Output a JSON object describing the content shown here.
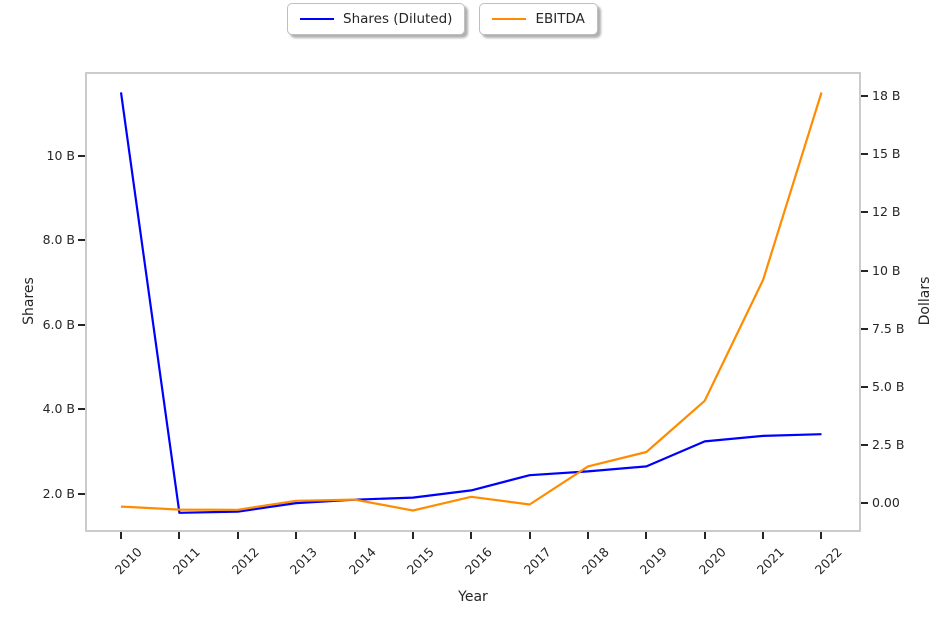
{
  "legend": {
    "items": [
      {
        "name": "shares-diluted",
        "label": "Shares (Diluted)",
        "color": "#0000ff"
      },
      {
        "name": "ebitda",
        "label": "EBITDA",
        "color": "#ff8c00"
      }
    ]
  },
  "chart_data": {
    "type": "line",
    "x": [
      2010,
      2011,
      2012,
      2013,
      2014,
      2015,
      2016,
      2017,
      2018,
      2019,
      2020,
      2021,
      2022
    ],
    "series": [
      {
        "name": "Shares (Diluted)",
        "axis": "left",
        "color": "#0000ff",
        "values": [
          11.5,
          1.55,
          1.58,
          1.78,
          1.86,
          1.91,
          2.08,
          2.44,
          2.53,
          2.65,
          3.24,
          3.37,
          3.41
        ]
      },
      {
        "name": "EBITDA",
        "axis": "right",
        "color": "#ff8c00",
        "values": [
          -0.15,
          -0.28,
          -0.29,
          0.1,
          0.15,
          -0.32,
          0.27,
          -0.06,
          1.58,
          2.2,
          4.4,
          9.6,
          17.66
        ]
      }
    ],
    "title": "",
    "xlabel": "Year",
    "xlim": [
      2009.4,
      2022.66
    ],
    "x_ticks": {
      "rotation": 45,
      "labels": [
        "2010",
        "2011",
        "2012",
        "2013",
        "2014",
        "2015",
        "2016",
        "2017",
        "2018",
        "2019",
        "2020",
        "2021",
        "2022"
      ]
    },
    "axes": {
      "left": {
        "label": "Shares",
        "unit": "B",
        "lim": [
          1.12,
          11.96
        ],
        "tick_values": [
          2,
          4,
          6,
          8,
          10
        ],
        "tick_labels": [
          "2.0 B",
          "4.0 B",
          "6.0 B",
          "8.0 B",
          "10 B"
        ]
      },
      "right": {
        "label": "Dollars",
        "unit": "B",
        "lim": [
          -1.2,
          18.5
        ],
        "tick_values": [
          0,
          2.5,
          5,
          7.5,
          10,
          12.5,
          15,
          17.5
        ],
        "tick_labels": [
          "0.00",
          "2.5 B",
          "5.0 B",
          "7.5 B",
          "10 B",
          "12 B",
          "15 B",
          "18 B"
        ]
      }
    },
    "grid": false,
    "legend_position": "top-center"
  },
  "colors": {
    "background": "#ffffff",
    "spine": "#cbcbcb",
    "tick": "#262626",
    "text": "#262626"
  }
}
